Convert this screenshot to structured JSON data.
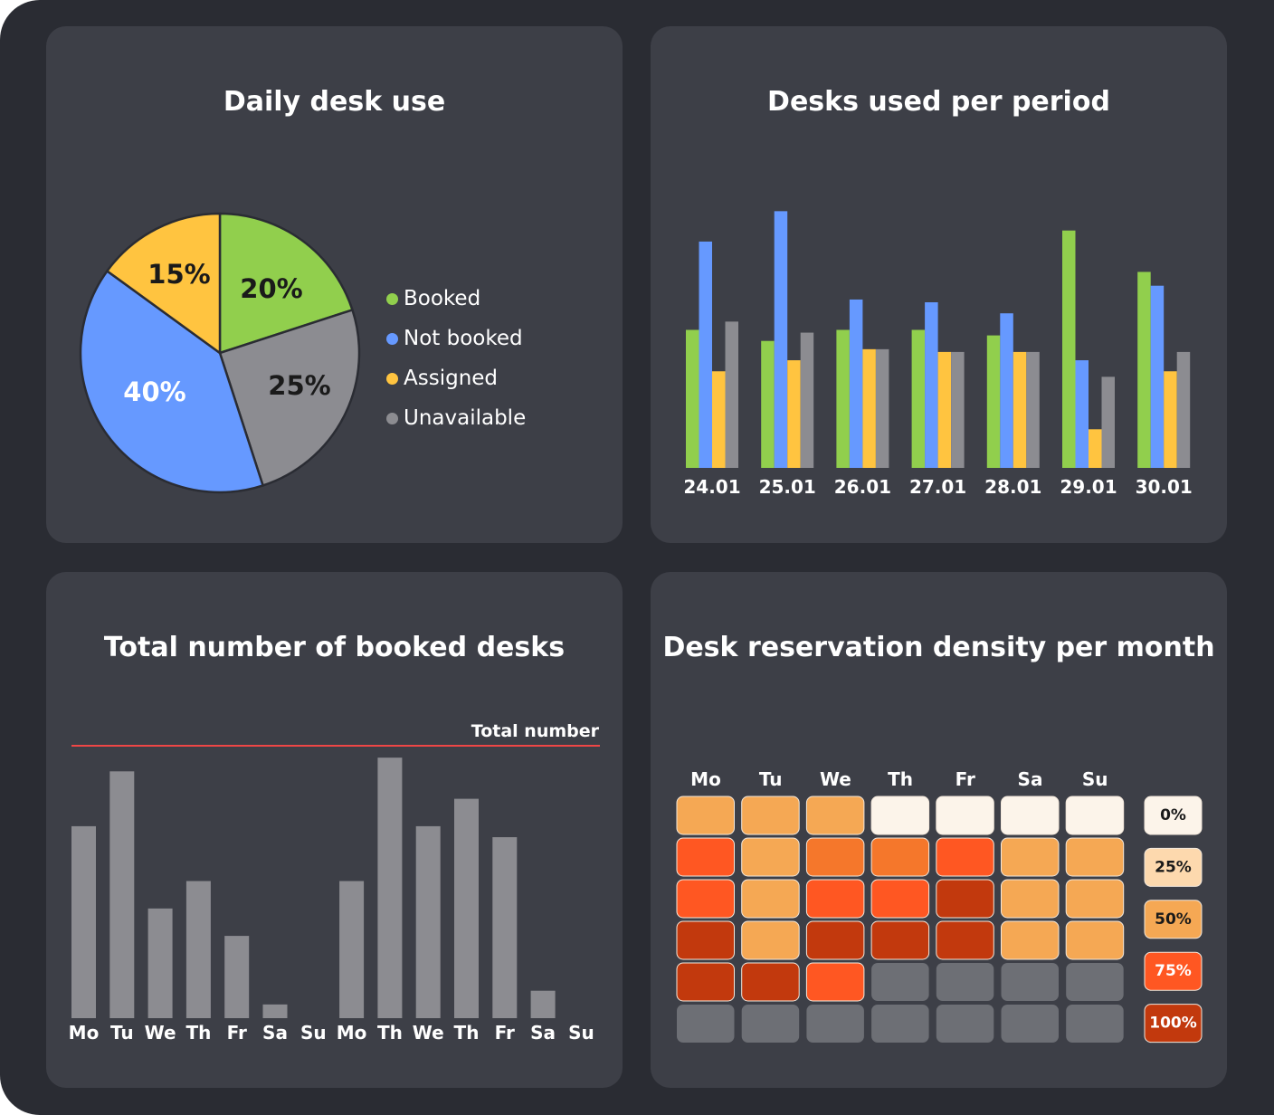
{
  "colors": {
    "background": "#2a2c33",
    "panel": "#3d3f47",
    "text": "#ffffff",
    "booked": "#91cf4d",
    "not_booked": "#6699ff",
    "assigned": "#ffc440",
    "unavailable": "#8c8c91",
    "total_line": "#ef4646"
  },
  "panels": {
    "daily": {
      "title": "Daily desk use",
      "legend": [
        {
          "label": "Booked",
          "color": "#91cf4d"
        },
        {
          "label": "Not booked",
          "color": "#6699ff"
        },
        {
          "label": "Assigned",
          "color": "#ffc440"
        },
        {
          "label": "Unavailable",
          "color": "#8c8c91"
        }
      ]
    },
    "period": {
      "title": "Desks used per period"
    },
    "total": {
      "title": "Total number of booked desks",
      "line_label": "Total number"
    },
    "density": {
      "title": "Desk reservation density per month"
    }
  },
  "chart_data": [
    {
      "type": "pie",
      "title": "Daily desk use",
      "slices": [
        {
          "label": "Booked",
          "value": 20,
          "display": "20%",
          "color": "#91cf4d"
        },
        {
          "label": "Unavailable",
          "value": 25,
          "display": "25%",
          "color": "#8c8c91"
        },
        {
          "label": "Not booked",
          "value": 40,
          "display": "40%",
          "color": "#6699ff"
        },
        {
          "label": "Assigned",
          "value": 15,
          "display": "15%",
          "color": "#ffc440"
        }
      ],
      "legend_position": "right"
    },
    {
      "type": "bar",
      "title": "Desks used per period",
      "categories": [
        "24.01",
        "25.01",
        "26.01",
        "27.01",
        "28.01",
        "29.01",
        "30.01"
      ],
      "series": [
        {
          "name": "Booked",
          "color": "#91cf4d",
          "values": [
            25,
            23,
            25,
            25,
            24,
            43,
            35.5
          ]
        },
        {
          "name": "Not booked",
          "color": "#6699ff",
          "values": [
            41,
            46.5,
            30.5,
            30,
            28,
            19.5,
            33
          ]
        },
        {
          "name": "Assigned",
          "color": "#ffc440",
          "values": [
            17.5,
            19.5,
            21.5,
            21,
            21,
            7,
            17.5
          ]
        },
        {
          "name": "Unavailable",
          "color": "#8c8c91",
          "values": [
            26.5,
            24.5,
            21.5,
            21,
            21,
            16.5,
            21
          ]
        }
      ],
      "grid": false
    },
    {
      "type": "bar",
      "title": "Total number of booked desks",
      "categories": [
        "Mo",
        "Tu",
        "We",
        "Th",
        "Fr",
        "Sa",
        "Su",
        "Mo",
        "Th",
        "We",
        "Th",
        "Fr",
        "Sa",
        "Su"
      ],
      "values": [
        70,
        90,
        40,
        50,
        30,
        5,
        0,
        50,
        95,
        70,
        80,
        66,
        10,
        0
      ],
      "reference_line": {
        "label": "Total number",
        "value": 100
      },
      "grid": false
    },
    {
      "type": "heatmap",
      "title": "Desk reservation density per month",
      "columns": [
        "Mo",
        "Tu",
        "We",
        "Th",
        "Fr",
        "Sa",
        "Su"
      ],
      "rows": [
        [
          50,
          50,
          50,
          0,
          0,
          0,
          0
        ],
        [
          75,
          50,
          62.5,
          62.5,
          75,
          50,
          50
        ],
        [
          75,
          50,
          75,
          75,
          100,
          50,
          50
        ],
        [
          100,
          50,
          100,
          100,
          100,
          50,
          50
        ],
        [
          100,
          100,
          75,
          null,
          null,
          null,
          null
        ],
        [
          null,
          null,
          null,
          null,
          null,
          null,
          null
        ]
      ],
      "scale": [
        {
          "label": "0%",
          "value": 0,
          "color": "#fcf4ea",
          "text_color": "#1a1a1a"
        },
        {
          "label": "25%",
          "value": 25,
          "color": "#fdd9ae",
          "text_color": "#1a1a1a"
        },
        {
          "label": "50%",
          "value": 50,
          "color": "#f5a854",
          "text_color": "#1a1a1a"
        },
        {
          "label": "75%",
          "value": 75,
          "color": "#ff5722",
          "text_color": "#ffffff"
        },
        {
          "label": "100%",
          "value": 100,
          "color": "#c2390d",
          "text_color": "#ffffff"
        }
      ],
      "intermediate_color": "#f5772b",
      "empty_color": "#6d6f75"
    }
  ]
}
